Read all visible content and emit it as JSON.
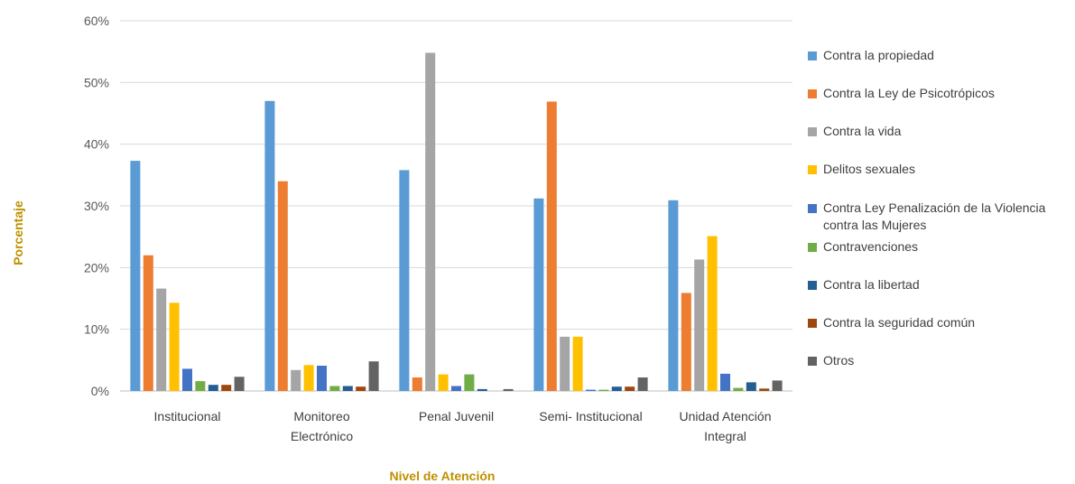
{
  "chart_data": {
    "type": "bar",
    "xlabel": "Nivel de Atención",
    "ylabel": "Porcentaje",
    "ylim": [
      0,
      60
    ],
    "yticks": [
      "0%",
      "10%",
      "20%",
      "30%",
      "40%",
      "50%",
      "60%"
    ],
    "grid": true,
    "legend_position": "right",
    "categories": [
      [
        "Institucional"
      ],
      [
        "Monitoreo",
        "Electrónico"
      ],
      [
        "Penal Juvenil"
      ],
      [
        "Semi- Institucional"
      ],
      [
        "Unidad Atención",
        "Integral"
      ]
    ],
    "series": [
      {
        "name": "Contra la propiedad",
        "color": "#5b9bd5",
        "values": [
          37.3,
          47.0,
          35.8,
          31.2,
          30.9
        ]
      },
      {
        "name": "Contra la Ley de Psicotrópicos",
        "color": "#ed7d31",
        "values": [
          22.0,
          34.0,
          2.2,
          46.9,
          15.9
        ]
      },
      {
        "name": "Contra la vida",
        "color": "#a5a5a5",
        "values": [
          16.6,
          3.4,
          54.8,
          8.8,
          21.3
        ]
      },
      {
        "name": "Delitos sexuales",
        "color": "#ffc000",
        "values": [
          14.3,
          4.2,
          2.7,
          8.8,
          25.1
        ]
      },
      {
        "name": "Contra Ley Penalización de la Violencia contra las Mujeres",
        "color": "#4472c4",
        "values": [
          3.6,
          4.1,
          0.8,
          0.2,
          2.8
        ]
      },
      {
        "name": "Contravenciones",
        "color": "#70ad47",
        "values": [
          1.6,
          0.8,
          2.7,
          0.2,
          0.5
        ]
      },
      {
        "name": "Contra la libertad",
        "color": "#255e91",
        "values": [
          1.0,
          0.8,
          0.3,
          0.7,
          1.4
        ]
      },
      {
        "name": "Contra la seguridad común",
        "color": "#9e480e",
        "values": [
          1.0,
          0.7,
          0.0,
          0.7,
          0.4
        ]
      },
      {
        "name": "Otros",
        "color": "#636363",
        "values": [
          2.3,
          4.8,
          0.3,
          2.2,
          1.7
        ]
      }
    ]
  }
}
